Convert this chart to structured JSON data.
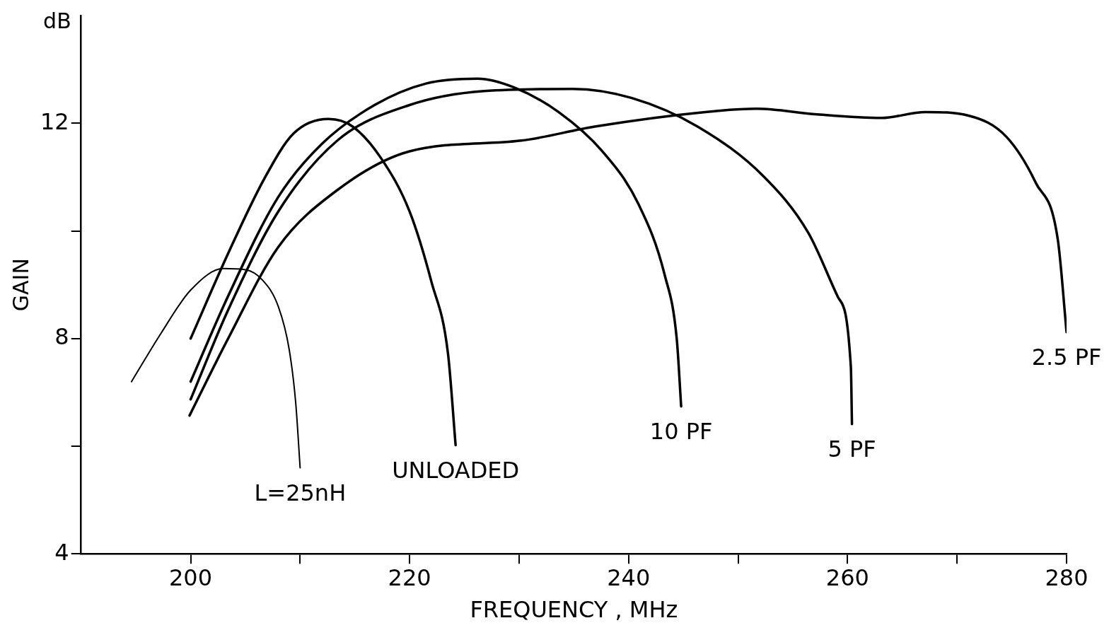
{
  "chart_data": {
    "type": "line",
    "xlabel": "FREQUENCY , MHz",
    "ylabel": "GAIN",
    "annotations": [
      "dB"
    ],
    "xlim": [
      190,
      280
    ],
    "ylim": [
      4,
      14
    ],
    "xticks": [
      200,
      {
        "value": 210,
        "label": null
      },
      220,
      {
        "value": 230,
        "label": null
      },
      240,
      {
        "value": 250,
        "label": null
      },
      260,
      {
        "value": 270,
        "label": null
      },
      280
    ],
    "yticks": [
      4,
      {
        "value": 6,
        "label": null
      },
      8,
      {
        "value": 10,
        "label": null
      },
      12
    ],
    "grid": false,
    "legend": false,
    "marker": "none",
    "line_style": "solid",
    "series": [
      {
        "name": "L=25nH",
        "color": "#000000",
        "x": [
          194.6,
          197.3,
          200,
          203,
          205,
          206.5,
          208,
          209,
          209.6,
          210
        ],
        "values": [
          7.2,
          8.1,
          8.9,
          9.3,
          9.28,
          9.1,
          8.6,
          7.8,
          6.8,
          5.6
        ]
      },
      {
        "name": "UNLOADED",
        "color": "#000000",
        "x": [
          200,
          203.4,
          206.7,
          209.4,
          212.6,
          214.8,
          217.4,
          220,
          222,
          223.5,
          224.2
        ],
        "values": [
          8.0,
          9.57,
          10.96,
          11.81,
          12.08,
          11.94,
          11.35,
          10.36,
          9.05,
          7.73,
          6.02
        ]
      },
      {
        "name": "10 PF",
        "color": "#000000",
        "x": [
          200,
          203.4,
          208,
          212,
          216.8,
          221.5,
          226.2,
          229.5,
          233.6,
          237.6,
          240.9,
          243.3,
          244.4,
          244.8
        ],
        "values": [
          7.2,
          8.78,
          10.63,
          11.62,
          12.34,
          12.74,
          12.83,
          12.67,
          12.21,
          11.48,
          10.5,
          9.18,
          7.99,
          6.74
        ]
      },
      {
        "name": "5 PF",
        "color": "#000000",
        "x": [
          200,
          203.4,
          208,
          213.4,
          220,
          226.8,
          234.9,
          240.3,
          246.3,
          252.3,
          256.4,
          259.1,
          260.3,
          260.4
        ],
        "values": [
          6.87,
          8.52,
          10.36,
          11.68,
          12.34,
          12.6,
          12.64,
          12.47,
          11.94,
          11.02,
          9.97,
          8.78,
          7.47,
          6.41
        ]
      },
      {
        "name": "2.5 PF",
        "color": "#000000",
        "x": [
          199.9,
          203.4,
          208,
          213.4,
          220,
          230.2,
          236.9,
          247,
          251.7,
          257,
          263.1,
          267.1,
          271.1,
          274.5,
          277.2,
          279.2,
          280
        ],
        "values": [
          6.57,
          7.99,
          9.7,
          10.76,
          11.48,
          11.68,
          11.94,
          12.21,
          12.27,
          12.17,
          12.1,
          12.21,
          12.14,
          11.75,
          10.89,
          9.84,
          8.12
        ]
      }
    ]
  }
}
